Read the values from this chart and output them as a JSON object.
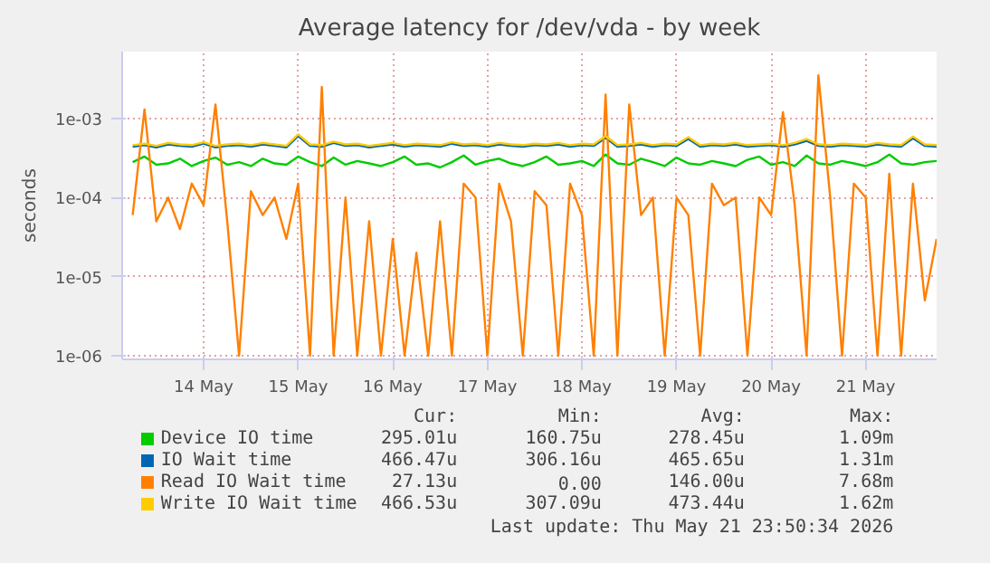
{
  "chart_data": {
    "type": "line",
    "title": "Average latency for /dev/vda - by week",
    "ylabel": "seconds",
    "log": "y",
    "grid": true,
    "legend": "bottom",
    "marker": "none",
    "line_style": "solid",
    "x": [
      "2026-05-13T06:00",
      "2026-05-13T09:00",
      "2026-05-13T12:00",
      "2026-05-13T15:00",
      "2026-05-13T18:00",
      "2026-05-13T21:00",
      "2026-05-14T00:00",
      "2026-05-14T03:00",
      "2026-05-14T06:00",
      "2026-05-14T09:00",
      "2026-05-14T12:00",
      "2026-05-14T15:00",
      "2026-05-14T18:00",
      "2026-05-14T21:00",
      "2026-05-15T00:00",
      "2026-05-15T03:00",
      "2026-05-15T06:00",
      "2026-05-15T09:00",
      "2026-05-15T12:00",
      "2026-05-15T15:00",
      "2026-05-15T18:00",
      "2026-05-15T21:00",
      "2026-05-16T00:00",
      "2026-05-16T03:00",
      "2026-05-16T06:00",
      "2026-05-16T09:00",
      "2026-05-16T12:00",
      "2026-05-16T15:00",
      "2026-05-16T18:00",
      "2026-05-16T21:00",
      "2026-05-17T00:00",
      "2026-05-17T03:00",
      "2026-05-17T06:00",
      "2026-05-17T09:00",
      "2026-05-17T12:00",
      "2026-05-17T15:00",
      "2026-05-17T18:00",
      "2026-05-17T21:00",
      "2026-05-18T00:00",
      "2026-05-18T03:00",
      "2026-05-18T06:00",
      "2026-05-18T09:00",
      "2026-05-18T12:00",
      "2026-05-18T15:00",
      "2026-05-18T18:00",
      "2026-05-18T21:00",
      "2026-05-19T00:00",
      "2026-05-19T03:00",
      "2026-05-19T06:00",
      "2026-05-19T09:00",
      "2026-05-19T12:00",
      "2026-05-19T15:00",
      "2026-05-19T18:00",
      "2026-05-19T21:00",
      "2026-05-20T00:00",
      "2026-05-20T03:00",
      "2026-05-20T06:00",
      "2026-05-20T09:00",
      "2026-05-20T12:00",
      "2026-05-20T15:00",
      "2026-05-20T18:00",
      "2026-05-20T21:00",
      "2026-05-21T00:00",
      "2026-05-21T03:00",
      "2026-05-21T06:00",
      "2026-05-21T09:00",
      "2026-05-21T12:00",
      "2026-05-21T15:00",
      "2026-05-21T18:00"
    ],
    "xlim": [
      "2026-05-13T03:20",
      "2026-05-21T18:00"
    ],
    "xticks": [
      {
        "value": "2026-05-14",
        "label": "14 May"
      },
      {
        "value": "2026-05-15",
        "label": "15 May"
      },
      {
        "value": "2026-05-16",
        "label": "16 May"
      },
      {
        "value": "2026-05-17",
        "label": "17 May"
      },
      {
        "value": "2026-05-18",
        "label": "18 May"
      },
      {
        "value": "2026-05-19",
        "label": "19 May"
      },
      {
        "value": "2026-05-20",
        "label": "20 May"
      },
      {
        "value": "2026-05-21",
        "label": "21 May"
      }
    ],
    "ylim": [
      9e-07,
      0.007
    ],
    "yticks": [
      {
        "value": 1e-06,
        "label": "1e-06"
      },
      {
        "value": 1e-05,
        "label": "1e-05"
      },
      {
        "value": 0.0001,
        "label": "1e-04"
      },
      {
        "value": 0.001,
        "label": "1e-03"
      }
    ],
    "series": [
      {
        "name": "Device IO time",
        "color": "#00cc00",
        "values": [
          0.00028,
          0.00033,
          0.00026,
          0.00027,
          0.00031,
          0.00025,
          0.00029,
          0.00032,
          0.00026,
          0.00028,
          0.00025,
          0.00031,
          0.00027,
          0.00026,
          0.00033,
          0.00028,
          0.00025,
          0.00032,
          0.00026,
          0.00029,
          0.00027,
          0.00025,
          0.00028,
          0.00033,
          0.00026,
          0.00027,
          0.00024,
          0.00028,
          0.00034,
          0.00026,
          0.00029,
          0.00031,
          0.00027,
          0.00025,
          0.00028,
          0.00033,
          0.00026,
          0.00027,
          0.00029,
          0.00025,
          0.00035,
          0.00027,
          0.00026,
          0.00031,
          0.00028,
          0.00025,
          0.00032,
          0.00027,
          0.00026,
          0.00029,
          0.00027,
          0.00025,
          0.0003,
          0.00033,
          0.00026,
          0.00028,
          0.00025,
          0.00034,
          0.00027,
          0.00026,
          0.00029,
          0.00027,
          0.00025,
          0.00028,
          0.00035,
          0.00027,
          0.00026,
          0.00028,
          0.00029
        ]
      },
      {
        "name": "IO Wait time",
        "color": "#0066b3",
        "values": [
          0.00044,
          0.00046,
          0.00043,
          0.00047,
          0.00045,
          0.00044,
          0.00048,
          0.00043,
          0.00045,
          0.00046,
          0.00044,
          0.00047,
          0.00045,
          0.00043,
          0.0006,
          0.00045,
          0.00044,
          0.00049,
          0.00045,
          0.00046,
          0.00043,
          0.00045,
          0.00047,
          0.00044,
          0.00046,
          0.00045,
          0.00044,
          0.00048,
          0.00045,
          0.00046,
          0.00044,
          0.00047,
          0.00045,
          0.00044,
          0.00046,
          0.00045,
          0.00047,
          0.00044,
          0.00046,
          0.00045,
          0.00057,
          0.00044,
          0.00045,
          0.00047,
          0.00044,
          0.00046,
          0.00045,
          0.00055,
          0.00044,
          0.00046,
          0.00045,
          0.00047,
          0.00044,
          0.00045,
          0.00046,
          0.00044,
          0.00047,
          0.00052,
          0.00045,
          0.00044,
          0.00046,
          0.00045,
          0.00044,
          0.00047,
          0.00045,
          0.00044,
          0.00056,
          0.00045,
          0.00044
        ]
      },
      {
        "name": "Read IO Wait time",
        "color": "#ff8000",
        "values": [
          6e-05,
          0.0013,
          5e-05,
          0.0001,
          4e-05,
          0.00015,
          8e-05,
          0.0015,
          5e-05,
          1e-06,
          0.00012,
          6e-05,
          0.0001,
          3e-05,
          0.00015,
          1e-06,
          0.0025,
          1e-06,
          0.0001,
          1e-06,
          5e-05,
          1e-06,
          3e-05,
          1e-06,
          2e-05,
          1e-06,
          5e-05,
          1e-06,
          0.00015,
          0.0001,
          1e-06,
          0.00015,
          5e-05,
          1e-06,
          0.00012,
          8e-05,
          1e-06,
          0.00015,
          6e-05,
          1e-06,
          0.002,
          1e-06,
          0.0015,
          6e-05,
          0.0001,
          1e-06,
          0.0001,
          6e-05,
          1e-06,
          0.00015,
          8e-05,
          0.0001,
          1e-06,
          0.0001,
          6e-05,
          0.0012,
          8e-05,
          1e-06,
          0.0035,
          0.0001,
          1e-06,
          0.00015,
          0.0001,
          1e-06,
          0.0002,
          1e-06,
          0.00015,
          5e-06,
          3e-05
        ]
      },
      {
        "name": "Write IO Wait time",
        "color": "#ffcc00",
        "values": [
          0.00046,
          0.00048,
          0.00045,
          0.00049,
          0.00047,
          0.00046,
          0.0005,
          0.00045,
          0.00047,
          0.00048,
          0.00046,
          0.00049,
          0.00047,
          0.00045,
          0.00063,
          0.00047,
          0.00046,
          0.00051,
          0.00047,
          0.00048,
          0.00045,
          0.00047,
          0.00049,
          0.00046,
          0.00048,
          0.00047,
          0.00046,
          0.0005,
          0.00047,
          0.00048,
          0.00046,
          0.00049,
          0.00047,
          0.00046,
          0.00048,
          0.00047,
          0.00049,
          0.00046,
          0.00048,
          0.00047,
          0.0006,
          0.00046,
          0.00047,
          0.00049,
          0.00046,
          0.00048,
          0.00047,
          0.00058,
          0.00046,
          0.00048,
          0.00047,
          0.00049,
          0.00046,
          0.00047,
          0.00048,
          0.00046,
          0.00049,
          0.00055,
          0.00047,
          0.00046,
          0.00048,
          0.00047,
          0.00046,
          0.00049,
          0.00047,
          0.00046,
          0.00059,
          0.00047,
          0.00046
        ]
      }
    ],
    "annotations": [
      "Cur:",
      "Min:",
      "Avg:",
      "Max:",
      "295.01u",
      "160.75u",
      "278.45u",
      "1.09m",
      "466.47u",
      "306.16u",
      "465.65u",
      "1.31m",
      "27.13u",
      "0.00",
      "146.00u",
      "7.68m",
      "466.53u",
      "307.09u",
      "473.44u",
      "1.62m",
      "Last update: Thu May 21 23:50:34 2026"
    ]
  }
}
